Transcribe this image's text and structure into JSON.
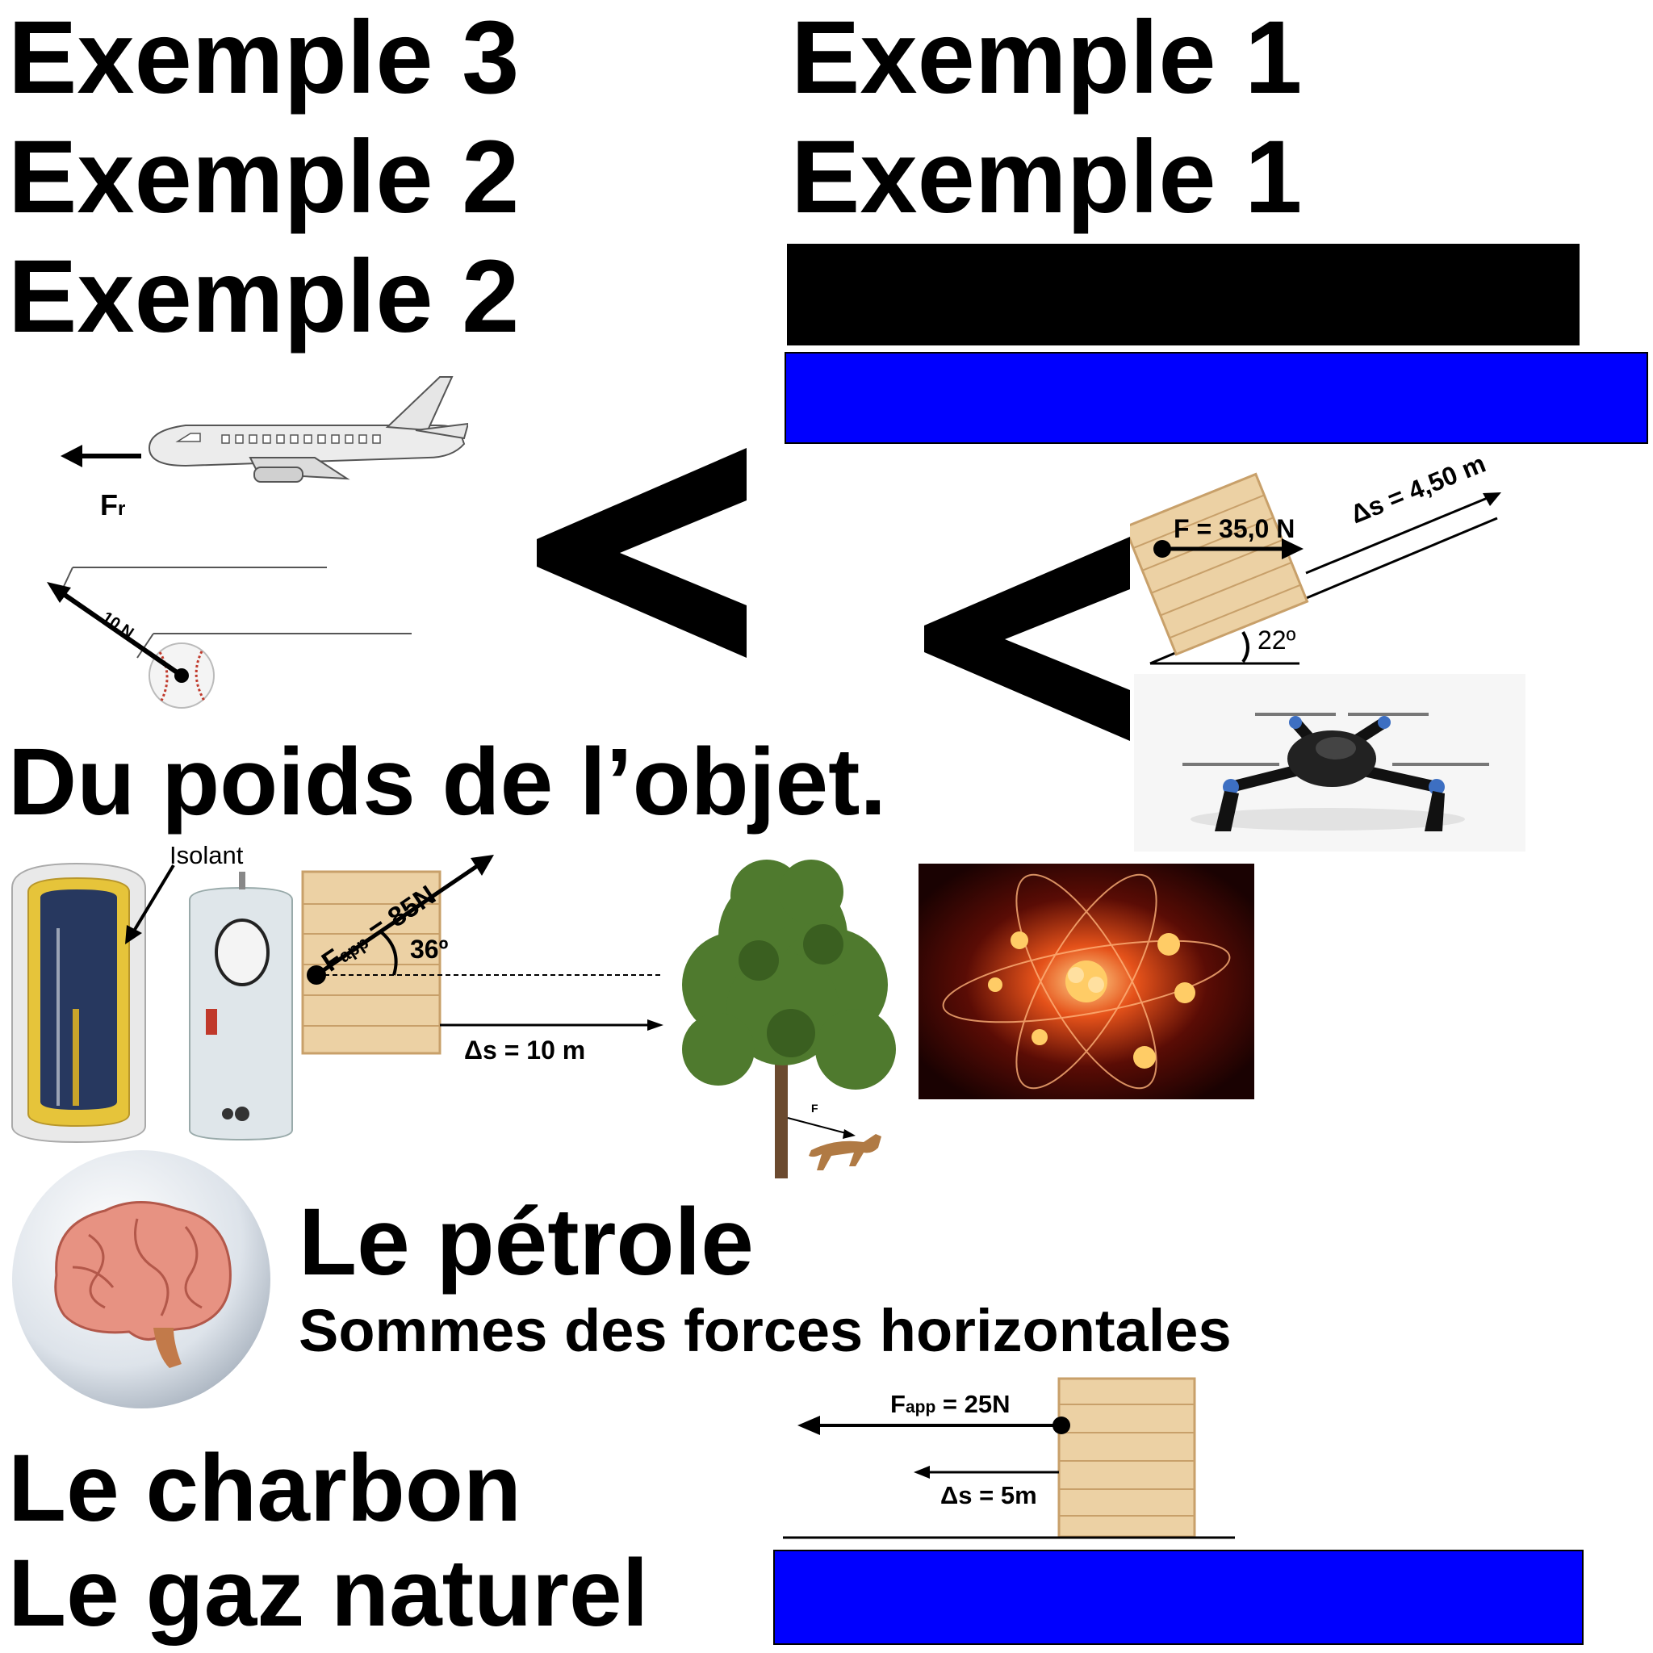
{
  "headings": {
    "ex3": "Exemple 3",
    "ex2a": "Exemple 2",
    "ex2b": "Exemple 2",
    "ex1a": "Exemple 1",
    "ex1b": "Exemple 1",
    "poids": "Du poids de l’objet.",
    "petrole": "Le pétrole",
    "sommes": "Sommes des forces horizontales",
    "charbon": "Le charbon",
    "gaz": "Le gaz naturel"
  },
  "symbols": {
    "less_than": "<"
  },
  "airplane": {
    "force_label": "F",
    "force_sub": "r"
  },
  "baseball": {
    "force_label": "10 N"
  },
  "crate_incline": {
    "force_label": "F = 35,0 N",
    "displacement_label": "Δs = 4,50 m",
    "angle_label": "22º"
  },
  "heater": {
    "label": "Isolant"
  },
  "crate_angle": {
    "force_label": "F",
    "force_sub": "app",
    "force_value": " = 85N",
    "angle_label": "36º",
    "displacement_label": "Δs = 10 m"
  },
  "tree": {
    "force_label": "F"
  },
  "crate_floor": {
    "force_label": "F",
    "force_sub": "app",
    "force_value": " = 25N",
    "displacement_label": "Δs = 5m"
  },
  "colors": {
    "black_bar": "#000000",
    "blue_bar": "#0000ff"
  }
}
